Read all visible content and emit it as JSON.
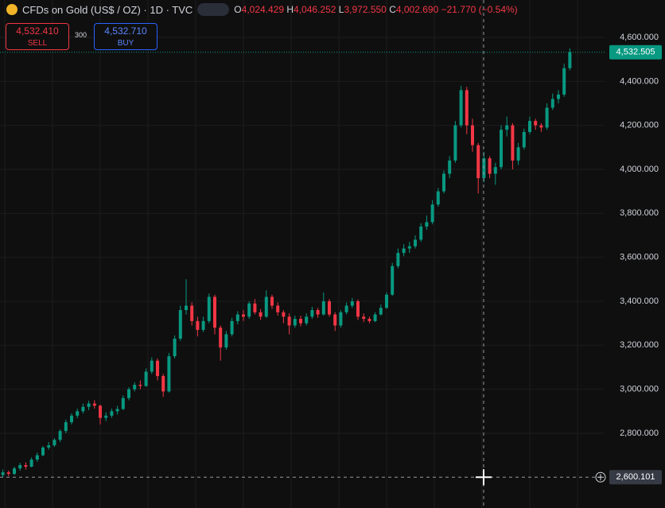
{
  "chart_data": {
    "type": "candlestick",
    "title": "CFDs on Gold (US$ / OZ) · 1D · TVC",
    "legend": {
      "o_label": "O",
      "open": "4,024.429",
      "h_label": "H",
      "high": "4,046.252",
      "l_label": "L",
      "low": "3,972.550",
      "c_label": "C",
      "close": "4,002.690",
      "change": "−21.770 (−0.54%)"
    },
    "sell": {
      "price": "4,532.410",
      "label": "SELL"
    },
    "spread": "300",
    "buy": {
      "price": "4,532.710",
      "label": "BUY"
    },
    "up_color": "#089981",
    "down_color": "#f23645",
    "grid": true,
    "ylim": [
      2460,
      4770
    ],
    "yticks": [
      {
        "value": 2800,
        "label": "2,800.000"
      },
      {
        "value": 3000,
        "label": "3,000.000"
      },
      {
        "value": 3200,
        "label": "3,200.000"
      },
      {
        "value": 3400,
        "label": "3,400.000"
      },
      {
        "value": 3600,
        "label": "3,600.000"
      },
      {
        "value": 3800,
        "label": "3,800.000"
      },
      {
        "value": 4000,
        "label": "4,000.000"
      },
      {
        "value": 4200,
        "label": "4,200.000"
      },
      {
        "value": 4400,
        "label": "4,400.000"
      },
      {
        "value": 4600,
        "label": "4,600.000"
      }
    ],
    "last_price": {
      "value": 4532.505,
      "label": "4,532.505"
    },
    "crosshair": {
      "value": 2600.101,
      "label": "2,600.101"
    },
    "candles": [
      [
        2610,
        2635,
        2600,
        2622
      ],
      [
        2622,
        2630,
        2605,
        2615
      ],
      [
        2615,
        2648,
        2610,
        2640
      ],
      [
        2640,
        2665,
        2630,
        2655
      ],
      [
        2655,
        2668,
        2635,
        2648
      ],
      [
        2648,
        2690,
        2645,
        2680
      ],
      [
        2680,
        2712,
        2670,
        2700
      ],
      [
        2700,
        2742,
        2695,
        2735
      ],
      [
        2735,
        2760,
        2725,
        2745
      ],
      [
        2745,
        2778,
        2738,
        2770
      ],
      [
        2770,
        2818,
        2760,
        2810
      ],
      [
        2810,
        2862,
        2800,
        2850
      ],
      [
        2850,
        2890,
        2840,
        2880
      ],
      [
        2880,
        2912,
        2868,
        2900
      ],
      [
        2900,
        2935,
        2890,
        2920
      ],
      [
        2920,
        2948,
        2905,
        2935
      ],
      [
        2935,
        2950,
        2912,
        2925
      ],
      [
        2925,
        2930,
        2840,
        2870
      ],
      [
        2870,
        2895,
        2855,
        2880
      ],
      [
        2880,
        2912,
        2870,
        2900
      ],
      [
        2900,
        2925,
        2885,
        2910
      ],
      [
        2910,
        2972,
        2905,
        2960
      ],
      [
        2960,
        3010,
        2950,
        3000
      ],
      [
        3000,
        3032,
        2990,
        3020
      ],
      [
        3020,
        3040,
        3000,
        3015
      ],
      [
        3015,
        3095,
        3010,
        3080
      ],
      [
        3080,
        3145,
        3070,
        3130
      ],
      [
        3130,
        3140,
        3040,
        3060
      ],
      [
        3060,
        3070,
        2965,
        2990
      ],
      [
        2990,
        3165,
        2985,
        3150
      ],
      [
        3150,
        3245,
        3140,
        3230
      ],
      [
        3230,
        3380,
        3220,
        3360
      ],
      [
        3360,
        3500,
        3340,
        3380
      ],
      [
        3380,
        3395,
        3290,
        3310
      ],
      [
        3310,
        3330,
        3240,
        3270
      ],
      [
        3270,
        3330,
        3260,
        3310
      ],
      [
        3310,
        3435,
        3300,
        3420
      ],
      [
        3420,
        3430,
        3250,
        3280
      ],
      [
        3280,
        3290,
        3130,
        3190
      ],
      [
        3190,
        3265,
        3180,
        3250
      ],
      [
        3250,
        3325,
        3240,
        3310
      ],
      [
        3310,
        3355,
        3295,
        3340
      ],
      [
        3340,
        3360,
        3310,
        3330
      ],
      [
        3330,
        3400,
        3320,
        3390
      ],
      [
        3390,
        3410,
        3340,
        3350
      ],
      [
        3350,
        3365,
        3315,
        3330
      ],
      [
        3330,
        3450,
        3325,
        3420
      ],
      [
        3420,
        3430,
        3365,
        3380
      ],
      [
        3380,
        3395,
        3335,
        3350
      ],
      [
        3350,
        3360,
        3300,
        3330
      ],
      [
        3330,
        3345,
        3250,
        3290
      ],
      [
        3290,
        3335,
        3280,
        3320
      ],
      [
        3320,
        3335,
        3285,
        3300
      ],
      [
        3300,
        3345,
        3290,
        3330
      ],
      [
        3330,
        3375,
        3320,
        3360
      ],
      [
        3360,
        3370,
        3325,
        3340
      ],
      [
        3340,
        3440,
        3335,
        3400
      ],
      [
        3400,
        3410,
        3330,
        3340
      ],
      [
        3340,
        3350,
        3265,
        3290
      ],
      [
        3290,
        3360,
        3280,
        3350
      ],
      [
        3350,
        3395,
        3340,
        3380
      ],
      [
        3380,
        3415,
        3370,
        3400
      ],
      [
        3400,
        3408,
        3315,
        3330
      ],
      [
        3330,
        3345,
        3305,
        3320
      ],
      [
        3320,
        3330,
        3300,
        3310
      ],
      [
        3310,
        3350,
        3305,
        3340
      ],
      [
        3340,
        3385,
        3335,
        3370
      ],
      [
        3370,
        3440,
        3365,
        3430
      ],
      [
        3430,
        3575,
        3425,
        3560
      ],
      [
        3560,
        3640,
        3550,
        3620
      ],
      [
        3620,
        3660,
        3605,
        3640
      ],
      [
        3640,
        3670,
        3620,
        3650
      ],
      [
        3650,
        3700,
        3640,
        3680
      ],
      [
        3680,
        3755,
        3670,
        3740
      ],
      [
        3740,
        3790,
        3725,
        3760
      ],
      [
        3760,
        3860,
        3750,
        3840
      ],
      [
        3840,
        3915,
        3830,
        3900
      ],
      [
        3900,
        3995,
        3890,
        3980
      ],
      [
        3980,
        4060,
        3960,
        4040
      ],
      [
        4040,
        4220,
        4030,
        4200
      ],
      [
        4200,
        4380,
        4190,
        4360
      ],
      [
        4360,
        4375,
        4160,
        4200
      ],
      [
        4200,
        4230,
        4080,
        4110
      ],
      [
        4110,
        4120,
        3890,
        3960
      ],
      [
        3960,
        4080,
        3940,
        4050
      ],
      [
        4050,
        4060,
        3960,
        3980
      ],
      [
        3980,
        4030,
        3930,
        4010
      ],
      [
        4010,
        4200,
        4000,
        4180
      ],
      [
        4180,
        4240,
        4150,
        4200
      ],
      [
        4200,
        4210,
        4000,
        4040
      ],
      [
        4040,
        4120,
        4020,
        4100
      ],
      [
        4100,
        4185,
        4090,
        4170
      ],
      [
        4170,
        4240,
        4160,
        4220
      ],
      [
        4220,
        4230,
        4180,
        4200
      ],
      [
        4200,
        4210,
        4170,
        4190
      ],
      [
        4190,
        4300,
        4180,
        4280
      ],
      [
        4280,
        4345,
        4270,
        4320
      ],
      [
        4320,
        4360,
        4300,
        4340
      ],
      [
        4340,
        4480,
        4330,
        4460
      ],
      [
        4460,
        4550,
        4450,
        4532.505
      ]
    ]
  }
}
